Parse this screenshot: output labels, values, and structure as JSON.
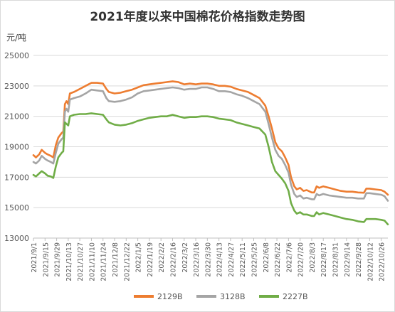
{
  "chart_data": {
    "type": "line",
    "title": "2021年度以来中国棉花价格指数走势图",
    "unit": "元/吨",
    "ylim": [
      13000,
      25000
    ],
    "yticks": [
      13000,
      15000,
      17000,
      19000,
      21000,
      23000,
      25000
    ],
    "ytick_labels": [
      "13000",
      "15000",
      "17000",
      "19000",
      "21000",
      "23000",
      "25000"
    ],
    "grid": true,
    "legend_position": "bottom",
    "x_start": "2021-09-01",
    "x_end": "2022-11-03",
    "x_tick_dates": [
      "2021-09-01",
      "2021-09-15",
      "2021-09-29",
      "2021-10-13",
      "2021-10-27",
      "2021-11-10",
      "2021-11-24",
      "2021-12-08",
      "2021-12-22",
      "2022-01-05",
      "2022-01-19",
      "2022-02-02",
      "2022-02-16",
      "2022-03-02",
      "2022-03-16",
      "2022-03-30",
      "2022-04-13",
      "2022-04-27",
      "2022-05-11",
      "2022-05-25",
      "2022-06-08",
      "2022-06-22",
      "2022-07-06",
      "2022-07-20",
      "2022-08-03",
      "2022-08-17",
      "2022-08-31",
      "2022-09-14",
      "2022-09-28",
      "2022-10-12",
      "2022-10-26"
    ],
    "x_tick_labels": [
      "2021/9/1",
      "2021/9/15",
      "2021/9/29",
      "2021/10/13",
      "2021/10/27",
      "2021/11/10",
      "2021/11/24",
      "2021/12/8",
      "2021/12/22",
      "2022/1/5",
      "2022/1/19",
      "2022/2/2",
      "2022/2/16",
      "2022/3/2",
      "2022/3/16",
      "2022/3/30",
      "2022/4/13",
      "2022/4/27",
      "2022/5/11",
      "2022/5/25",
      "2022/6/8",
      "2022/6/22",
      "2022/7/6",
      "2022/7/20",
      "2022/8/3",
      "2022/8/17",
      "2022/8/31",
      "2022/9/14",
      "2022/9/28",
      "2022/10/12",
      "2022/10/26"
    ],
    "series": [
      {
        "name": "2129B",
        "color": "#ed7d31",
        "points": [
          [
            "2021-09-01",
            18450
          ],
          [
            "2021-09-04",
            18300
          ],
          [
            "2021-09-08",
            18500
          ],
          [
            "2021-09-11",
            18800
          ],
          [
            "2021-09-15",
            18600
          ],
          [
            "2021-09-18",
            18500
          ],
          [
            "2021-09-22",
            18400
          ],
          [
            "2021-09-25",
            18300
          ],
          [
            "2021-09-28",
            19100
          ],
          [
            "2021-10-01",
            19600
          ],
          [
            "2021-10-05",
            19900
          ],
          [
            "2021-10-07",
            20000
          ],
          [
            "2021-10-09",
            21800
          ],
          [
            "2021-10-11",
            22000
          ],
          [
            "2021-10-13",
            21800
          ],
          [
            "2021-10-15",
            22500
          ],
          [
            "2021-10-20",
            22600
          ],
          [
            "2021-10-27",
            22800
          ],
          [
            "2021-11-03",
            23000
          ],
          [
            "2021-11-10",
            23200
          ],
          [
            "2021-11-17",
            23200
          ],
          [
            "2021-11-24",
            23150
          ],
          [
            "2021-11-28",
            22800
          ],
          [
            "2021-12-01",
            22600
          ],
          [
            "2021-12-08",
            22500
          ],
          [
            "2021-12-15",
            22550
          ],
          [
            "2021-12-22",
            22650
          ],
          [
            "2021-12-29",
            22750
          ],
          [
            "2022-01-05",
            22900
          ],
          [
            "2022-01-12",
            23050
          ],
          [
            "2022-01-19",
            23100
          ],
          [
            "2022-01-26",
            23150
          ],
          [
            "2022-02-02",
            23200
          ],
          [
            "2022-02-09",
            23250
          ],
          [
            "2022-02-16",
            23300
          ],
          [
            "2022-02-23",
            23250
          ],
          [
            "2022-03-02",
            23100
          ],
          [
            "2022-03-09",
            23150
          ],
          [
            "2022-03-16",
            23100
          ],
          [
            "2022-03-23",
            23150
          ],
          [
            "2022-03-30",
            23150
          ],
          [
            "2022-04-06",
            23100
          ],
          [
            "2022-04-13",
            23000
          ],
          [
            "2022-04-20",
            23000
          ],
          [
            "2022-04-27",
            22950
          ],
          [
            "2022-05-04",
            22800
          ],
          [
            "2022-05-11",
            22700
          ],
          [
            "2022-05-18",
            22600
          ],
          [
            "2022-05-25",
            22400
          ],
          [
            "2022-06-01",
            22200
          ],
          [
            "2022-06-08",
            21700
          ],
          [
            "2022-06-12",
            21000
          ],
          [
            "2022-06-16",
            20200
          ],
          [
            "2022-06-20",
            19300
          ],
          [
            "2022-06-24",
            18900
          ],
          [
            "2022-06-28",
            18700
          ],
          [
            "2022-07-02",
            18300
          ],
          [
            "2022-07-06",
            17800
          ],
          [
            "2022-07-09",
            17000
          ],
          [
            "2022-07-13",
            16400
          ],
          [
            "2022-07-16",
            16200
          ],
          [
            "2022-07-20",
            16300
          ],
          [
            "2022-07-24",
            16100
          ],
          [
            "2022-07-28",
            16150
          ],
          [
            "2022-08-03",
            16000
          ],
          [
            "2022-08-06",
            16000
          ],
          [
            "2022-08-09",
            16400
          ],
          [
            "2022-08-12",
            16300
          ],
          [
            "2022-08-17",
            16400
          ],
          [
            "2022-08-24",
            16300
          ],
          [
            "2022-08-31",
            16200
          ],
          [
            "2022-09-07",
            16100
          ],
          [
            "2022-09-14",
            16050
          ],
          [
            "2022-09-21",
            16050
          ],
          [
            "2022-09-28",
            16000
          ],
          [
            "2022-10-05",
            15980
          ],
          [
            "2022-10-08",
            16250
          ],
          [
            "2022-10-12",
            16250
          ],
          [
            "2022-10-19",
            16200
          ],
          [
            "2022-10-26",
            16150
          ],
          [
            "2022-10-30",
            16050
          ],
          [
            "2022-11-03",
            15850
          ]
        ]
      },
      {
        "name": "3128B",
        "color": "#a5a5a5",
        "points": [
          [
            "2021-09-01",
            18000
          ],
          [
            "2021-09-04",
            17900
          ],
          [
            "2021-09-08",
            18100
          ],
          [
            "2021-09-11",
            18400
          ],
          [
            "2021-09-15",
            18200
          ],
          [
            "2021-09-18",
            18100
          ],
          [
            "2021-09-22",
            18000
          ],
          [
            "2021-09-25",
            17900
          ],
          [
            "2021-09-28",
            18600
          ],
          [
            "2021-10-01",
            19200
          ],
          [
            "2021-10-05",
            19500
          ],
          [
            "2021-10-07",
            19600
          ],
          [
            "2021-10-09",
            21300
          ],
          [
            "2021-10-11",
            21500
          ],
          [
            "2021-10-13",
            21300
          ],
          [
            "2021-10-15",
            22100
          ],
          [
            "2021-10-20",
            22200
          ],
          [
            "2021-10-27",
            22300
          ],
          [
            "2021-11-03",
            22500
          ],
          [
            "2021-11-10",
            22750
          ],
          [
            "2021-11-17",
            22700
          ],
          [
            "2021-11-24",
            22650
          ],
          [
            "2021-11-28",
            22200
          ],
          [
            "2021-12-01",
            22000
          ],
          [
            "2021-12-08",
            21950
          ],
          [
            "2021-12-15",
            22000
          ],
          [
            "2021-12-22",
            22100
          ],
          [
            "2021-12-29",
            22250
          ],
          [
            "2022-01-05",
            22500
          ],
          [
            "2022-01-12",
            22650
          ],
          [
            "2022-01-19",
            22700
          ],
          [
            "2022-01-26",
            22750
          ],
          [
            "2022-02-02",
            22800
          ],
          [
            "2022-02-09",
            22850
          ],
          [
            "2022-02-16",
            22900
          ],
          [
            "2022-02-23",
            22850
          ],
          [
            "2022-03-02",
            22750
          ],
          [
            "2022-03-09",
            22800
          ],
          [
            "2022-03-16",
            22800
          ],
          [
            "2022-03-23",
            22900
          ],
          [
            "2022-03-30",
            22900
          ],
          [
            "2022-04-06",
            22800
          ],
          [
            "2022-04-13",
            22650
          ],
          [
            "2022-04-20",
            22650
          ],
          [
            "2022-04-27",
            22600
          ],
          [
            "2022-05-04",
            22450
          ],
          [
            "2022-05-11",
            22350
          ],
          [
            "2022-05-18",
            22200
          ],
          [
            "2022-05-25",
            22000
          ],
          [
            "2022-06-01",
            21800
          ],
          [
            "2022-06-08",
            21300
          ],
          [
            "2022-06-12",
            20500
          ],
          [
            "2022-06-16",
            19600
          ],
          [
            "2022-06-20",
            18800
          ],
          [
            "2022-06-24",
            18400
          ],
          [
            "2022-06-28",
            18200
          ],
          [
            "2022-07-02",
            17800
          ],
          [
            "2022-07-06",
            17300
          ],
          [
            "2022-07-09",
            16500
          ],
          [
            "2022-07-13",
            15900
          ],
          [
            "2022-07-16",
            15700
          ],
          [
            "2022-07-20",
            15800
          ],
          [
            "2022-07-24",
            15600
          ],
          [
            "2022-07-28",
            15650
          ],
          [
            "2022-08-03",
            15550
          ],
          [
            "2022-08-06",
            15550
          ],
          [
            "2022-08-09",
            15900
          ],
          [
            "2022-08-12",
            15800
          ],
          [
            "2022-08-17",
            15900
          ],
          [
            "2022-08-24",
            15800
          ],
          [
            "2022-08-31",
            15750
          ],
          [
            "2022-09-07",
            15700
          ],
          [
            "2022-09-14",
            15650
          ],
          [
            "2022-09-21",
            15650
          ],
          [
            "2022-09-28",
            15600
          ],
          [
            "2022-10-05",
            15600
          ],
          [
            "2022-10-08",
            15950
          ],
          [
            "2022-10-12",
            15950
          ],
          [
            "2022-10-19",
            15900
          ],
          [
            "2022-10-26",
            15850
          ],
          [
            "2022-10-30",
            15750
          ],
          [
            "2022-11-03",
            15450
          ]
        ]
      },
      {
        "name": "2227B",
        "color": "#70ad47",
        "points": [
          [
            "2021-09-01",
            17150
          ],
          [
            "2021-09-04",
            17050
          ],
          [
            "2021-09-08",
            17250
          ],
          [
            "2021-09-11",
            17400
          ],
          [
            "2021-09-15",
            17250
          ],
          [
            "2021-09-18",
            17100
          ],
          [
            "2021-09-22",
            17050
          ],
          [
            "2021-09-25",
            16950
          ],
          [
            "2021-09-28",
            17700
          ],
          [
            "2021-10-01",
            18300
          ],
          [
            "2021-10-05",
            18600
          ],
          [
            "2021-10-07",
            18700
          ],
          [
            "2021-10-09",
            20600
          ],
          [
            "2021-10-11",
            20500
          ],
          [
            "2021-10-13",
            20400
          ],
          [
            "2021-10-15",
            21000
          ],
          [
            "2021-10-20",
            21100
          ],
          [
            "2021-10-27",
            21150
          ],
          [
            "2021-11-03",
            21150
          ],
          [
            "2021-11-10",
            21200
          ],
          [
            "2021-11-17",
            21150
          ],
          [
            "2021-11-24",
            21100
          ],
          [
            "2021-11-28",
            20800
          ],
          [
            "2021-12-01",
            20600
          ],
          [
            "2021-12-08",
            20450
          ],
          [
            "2021-12-15",
            20400
          ],
          [
            "2021-12-22",
            20450
          ],
          [
            "2021-12-29",
            20550
          ],
          [
            "2022-01-05",
            20700
          ],
          [
            "2022-01-12",
            20800
          ],
          [
            "2022-01-19",
            20900
          ],
          [
            "2022-01-26",
            20950
          ],
          [
            "2022-02-02",
            21000
          ],
          [
            "2022-02-09",
            21000
          ],
          [
            "2022-02-16",
            21100
          ],
          [
            "2022-02-23",
            21000
          ],
          [
            "2022-03-02",
            20900
          ],
          [
            "2022-03-09",
            20950
          ],
          [
            "2022-03-16",
            20950
          ],
          [
            "2022-03-23",
            21000
          ],
          [
            "2022-03-30",
            21000
          ],
          [
            "2022-04-06",
            20950
          ],
          [
            "2022-04-13",
            20850
          ],
          [
            "2022-04-20",
            20800
          ],
          [
            "2022-04-27",
            20750
          ],
          [
            "2022-05-04",
            20600
          ],
          [
            "2022-05-11",
            20500
          ],
          [
            "2022-05-18",
            20400
          ],
          [
            "2022-05-25",
            20300
          ],
          [
            "2022-06-01",
            20200
          ],
          [
            "2022-06-08",
            19800
          ],
          [
            "2022-06-12",
            19000
          ],
          [
            "2022-06-16",
            18000
          ],
          [
            "2022-06-20",
            17400
          ],
          [
            "2022-06-24",
            17150
          ],
          [
            "2022-06-28",
            16900
          ],
          [
            "2022-07-02",
            16600
          ],
          [
            "2022-07-06",
            16100
          ],
          [
            "2022-07-09",
            15300
          ],
          [
            "2022-07-13",
            14800
          ],
          [
            "2022-07-16",
            14600
          ],
          [
            "2022-07-20",
            14700
          ],
          [
            "2022-07-24",
            14550
          ],
          [
            "2022-07-28",
            14550
          ],
          [
            "2022-08-03",
            14450
          ],
          [
            "2022-08-06",
            14450
          ],
          [
            "2022-08-09",
            14700
          ],
          [
            "2022-08-12",
            14550
          ],
          [
            "2022-08-17",
            14650
          ],
          [
            "2022-08-24",
            14550
          ],
          [
            "2022-08-31",
            14450
          ],
          [
            "2022-09-07",
            14350
          ],
          [
            "2022-09-14",
            14250
          ],
          [
            "2022-09-21",
            14200
          ],
          [
            "2022-09-28",
            14100
          ],
          [
            "2022-10-05",
            14050
          ],
          [
            "2022-10-08",
            14250
          ],
          [
            "2022-10-12",
            14250
          ],
          [
            "2022-10-19",
            14250
          ],
          [
            "2022-10-26",
            14200
          ],
          [
            "2022-10-30",
            14150
          ],
          [
            "2022-11-03",
            13900
          ]
        ]
      }
    ]
  }
}
